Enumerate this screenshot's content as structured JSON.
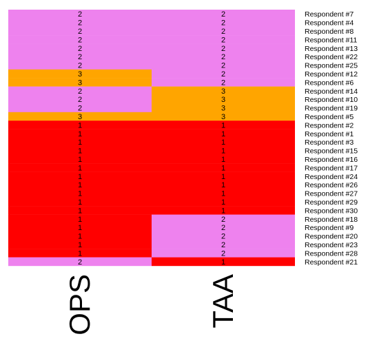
{
  "chart_data": {
    "type": "heatmap",
    "columns": [
      "OPS",
      "TAA"
    ],
    "rows": [
      {
        "name": "Respondent #7",
        "values": [
          2,
          2
        ]
      },
      {
        "name": "Respondent #4",
        "values": [
          2,
          2
        ]
      },
      {
        "name": "Respondent #8",
        "values": [
          2,
          2
        ]
      },
      {
        "name": "Respondent #11",
        "values": [
          2,
          2
        ]
      },
      {
        "name": "Respondent #13",
        "values": [
          2,
          2
        ]
      },
      {
        "name": "Respondent #22",
        "values": [
          2,
          2
        ]
      },
      {
        "name": "Respondent #25",
        "values": [
          2,
          2
        ]
      },
      {
        "name": "Respondent #12",
        "values": [
          3,
          2
        ]
      },
      {
        "name": "Respondent #6",
        "values": [
          3,
          2
        ]
      },
      {
        "name": "Respondent #14",
        "values": [
          2,
          3
        ]
      },
      {
        "name": "Respondent #10",
        "values": [
          2,
          3
        ]
      },
      {
        "name": "Respondent #19",
        "values": [
          2,
          3
        ]
      },
      {
        "name": "Respondent #5",
        "values": [
          3,
          3
        ]
      },
      {
        "name": "Respondent #2",
        "values": [
          1,
          1
        ]
      },
      {
        "name": "Respondent #1",
        "values": [
          1,
          1
        ]
      },
      {
        "name": "Respondent #3",
        "values": [
          1,
          1
        ]
      },
      {
        "name": "Respondent #15",
        "values": [
          1,
          1
        ]
      },
      {
        "name": "Respondent #16",
        "values": [
          1,
          1
        ]
      },
      {
        "name": "Respondent #17",
        "values": [
          1,
          1
        ]
      },
      {
        "name": "Respondent #24",
        "values": [
          1,
          1
        ]
      },
      {
        "name": "Respondent #26",
        "values": [
          1,
          1
        ]
      },
      {
        "name": "Respondent #27",
        "values": [
          1,
          1
        ]
      },
      {
        "name": "Respondent #29",
        "values": [
          1,
          1
        ]
      },
      {
        "name": "Respondent #30",
        "values": [
          1,
          1
        ]
      },
      {
        "name": "Respondent #18",
        "values": [
          1,
          2
        ]
      },
      {
        "name": "Respondent #9",
        "values": [
          1,
          2
        ]
      },
      {
        "name": "Respondent #20",
        "values": [
          1,
          2
        ]
      },
      {
        "name": "Respondent #23",
        "values": [
          1,
          2
        ]
      },
      {
        "name": "Respondent #28",
        "values": [
          1,
          2
        ]
      },
      {
        "name": "Respondent #21",
        "values": [
          2,
          1
        ]
      }
    ],
    "color_map": {
      "1": "#ff0000",
      "2": "#ee82ee",
      "3": "#ffa500"
    }
  }
}
